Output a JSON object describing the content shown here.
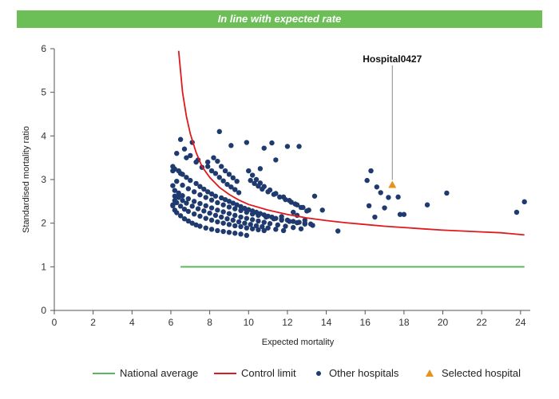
{
  "banner": {
    "title": "In line with expected rate"
  },
  "colors": {
    "banner": "#6cbf56",
    "national": "#5cb85c",
    "control": "#e0191c",
    "hospitals": "#1f3a6e",
    "selected": "#e8921e"
  },
  "legend": {
    "national": "National average",
    "control": "Control limit",
    "others": "Other hospitals",
    "selected": "Selected hospital"
  },
  "chart_data": {
    "type": "scatter",
    "title": "",
    "xlabel": "Expected mortality",
    "ylabel": "Standardised mortality ratio",
    "xlim": [
      0,
      24.5
    ],
    "ylim": [
      0,
      6
    ],
    "xticks": [
      0,
      2,
      4,
      6,
      8,
      10,
      12,
      14,
      16,
      18,
      20,
      22,
      24
    ],
    "yticks": [
      0,
      1,
      2,
      3,
      4,
      5,
      6
    ],
    "national_average": {
      "y": 1,
      "x_range": [
        6.5,
        24.2
      ]
    },
    "control_limit": {
      "x": [
        6.4,
        6.6,
        6.8,
        7.0,
        7.3,
        7.6,
        8.0,
        8.5,
        9.0,
        9.5,
        10.0,
        11.0,
        12.0,
        13.0,
        14.0,
        15.0,
        16.0,
        17.0,
        18.0,
        19.0,
        20.0,
        21.0,
        22.0,
        23.0,
        24.2
      ],
      "y": [
        5.95,
        5.0,
        4.45,
        4.05,
        3.62,
        3.3,
        3.05,
        2.82,
        2.66,
        2.53,
        2.43,
        2.3,
        2.2,
        2.12,
        2.06,
        2.01,
        1.97,
        1.93,
        1.9,
        1.87,
        1.84,
        1.82,
        1.8,
        1.78,
        1.73
      ]
    },
    "selected": {
      "label": "Hospital0427",
      "x": 17.4,
      "y": 2.88
    },
    "others": {
      "x": [
        6.1,
        6.2,
        6.3,
        6.5,
        6.7,
        6.9,
        7.1,
        7.3,
        7.5,
        7.8,
        8.1,
        8.4,
        8.7,
        9.0,
        9.3,
        9.6,
        9.9,
        6.1,
        6.2,
        6.3,
        6.5,
        6.7,
        6.9,
        7.2,
        7.5,
        7.8,
        8.1,
        8.4,
        8.7,
        9.0,
        9.3,
        9.6,
        9.9,
        10.2,
        10.5,
        10.8,
        6.2,
        6.4,
        6.6,
        6.8,
        7.1,
        7.4,
        7.7,
        8.0,
        8.3,
        8.6,
        8.9,
        9.2,
        9.5,
        9.8,
        10.1,
        10.4,
        10.7,
        11.0,
        11.4,
        11.8,
        6.1,
        6.2,
        6.4,
        6.6,
        6.9,
        7.2,
        7.5,
        7.8,
        8.1,
        8.4,
        8.7,
        9.0,
        9.3,
        9.6,
        9.9,
        10.2,
        10.5,
        10.8,
        11.1,
        11.5,
        11.9,
        12.3,
        12.7,
        6.3,
        6.6,
        6.9,
        7.2,
        7.5,
        7.8,
        8.1,
        8.4,
        8.7,
        9.0,
        9.3,
        9.6,
        9.9,
        10.2,
        10.5,
        10.9,
        11.3,
        11.7,
        12.1,
        12.5,
        12.9,
        13.3,
        6.1,
        6.4,
        6.6,
        6.8,
        7.0,
        7.3,
        7.5,
        7.7,
        7.9,
        8.1,
        8.3,
        8.6,
        8.8,
        9.0,
        9.2,
        9.4,
        9.6,
        9.8,
        10.0,
        10.2,
        10.4,
        10.6,
        10.8,
        11.0,
        11.2,
        11.4,
        11.7,
        12.0,
        12.3,
        12.6,
        12.9,
        13.2,
        6.2,
        6.5,
        6.8,
        7.3,
        7.6,
        7.9,
        8.1,
        8.3,
        8.5,
        8.7,
        8.9,
        9.1,
        9.3,
        9.5,
        10.1,
        10.3,
        10.5,
        10.7,
        11.0,
        11.3,
        11.6,
        11.9,
        12.2,
        12.5,
        12.8,
        13.1,
        6.1,
        6.3,
        6.7,
        7.0,
        7.4,
        7.9,
        8.2,
        8.4,
        8.6,
        8.8,
        9.0,
        9.2,
        9.4,
        10.0,
        10.2,
        10.4,
        10.6,
        10.8,
        11.1,
        11.4,
        11.8,
        12.1,
        12.4,
        12.7,
        13.0,
        6.5,
        7.1,
        8.5,
        9.1,
        9.9,
        11.2,
        12.0,
        10.8,
        12.6,
        10.6,
        11.4,
        13.4,
        13.8,
        14.6,
        12.3,
        12.5,
        11.7,
        12.9,
        16.2,
        16.3,
        16.5,
        16.6,
        16.1,
        16.8,
        17.0,
        17.2,
        17.7,
        17.8,
        18.0,
        19.2,
        20.2,
        23.8,
        24.2
      ],
      "y": [
        2.4,
        2.3,
        2.24,
        2.17,
        2.1,
        2.05,
        2.0,
        1.96,
        1.93,
        1.89,
        1.86,
        1.83,
        1.81,
        1.79,
        1.77,
        1.75,
        1.72,
        2.42,
        2.52,
        2.47,
        2.39,
        2.32,
        2.27,
        2.21,
        2.16,
        2.11,
        2.07,
        2.03,
        2.0,
        1.97,
        1.94,
        1.92,
        1.89,
        1.87,
        1.85,
        1.83,
        2.62,
        2.59,
        2.52,
        2.46,
        2.39,
        2.33,
        2.28,
        2.23,
        2.18,
        2.14,
        2.1,
        2.07,
        2.03,
        2.0,
        1.97,
        1.94,
        1.92,
        1.89,
        1.86,
        1.83,
        2.86,
        2.75,
        2.69,
        2.63,
        2.56,
        2.5,
        2.45,
        2.4,
        2.35,
        2.3,
        2.26,
        2.22,
        2.18,
        2.14,
        2.11,
        2.08,
        2.05,
        2.02,
        1.99,
        1.96,
        1.93,
        1.9,
        1.87,
        2.96,
        2.87,
        2.79,
        2.72,
        2.65,
        2.59,
        2.53,
        2.47,
        2.42,
        2.37,
        2.33,
        2.29,
        2.25,
        2.21,
        2.18,
        2.14,
        2.1,
        2.07,
        2.04,
        2.01,
        1.98,
        1.95,
        3.3,
        3.2,
        3.12,
        3.05,
        2.98,
        2.91,
        2.84,
        2.78,
        2.72,
        2.67,
        2.62,
        2.58,
        2.54,
        2.5,
        2.46,
        2.42,
        2.38,
        2.34,
        2.31,
        2.28,
        2.25,
        2.22,
        2.19,
        2.16,
        2.14,
        2.11,
        2.09,
        2.07,
        2.04,
        2.02,
        2.0,
        1.98,
        3.24,
        3.14,
        3.5,
        3.4,
        3.28,
        3.3,
        3.2,
        3.14,
        3.05,
        2.97,
        2.89,
        2.83,
        2.77,
        2.7,
        2.98,
        2.91,
        2.85,
        2.78,
        2.72,
        2.66,
        2.6,
        2.54,
        2.48,
        2.42,
        2.36,
        2.3,
        3.2,
        3.6,
        3.7,
        3.55,
        3.45,
        3.4,
        3.5,
        3.42,
        3.3,
        3.2,
        3.12,
        3.04,
        2.96,
        3.2,
        3.1,
        3.0,
        2.92,
        2.84,
        2.76,
        2.68,
        2.6,
        2.52,
        2.44,
        2.36,
        2.28,
        3.92,
        3.85,
        4.1,
        3.78,
        3.85,
        3.84,
        3.76,
        3.72,
        3.76,
        3.25,
        3.45,
        2.62,
        2.3,
        1.82,
        2.25,
        2.18,
        2.15,
        2.07,
        2.4,
        3.2,
        2.14,
        2.83,
        2.98,
        2.7,
        2.35,
        2.59,
        2.6,
        2.2,
        2.2,
        2.42,
        2.69,
        2.25,
        2.49
      ]
    }
  }
}
